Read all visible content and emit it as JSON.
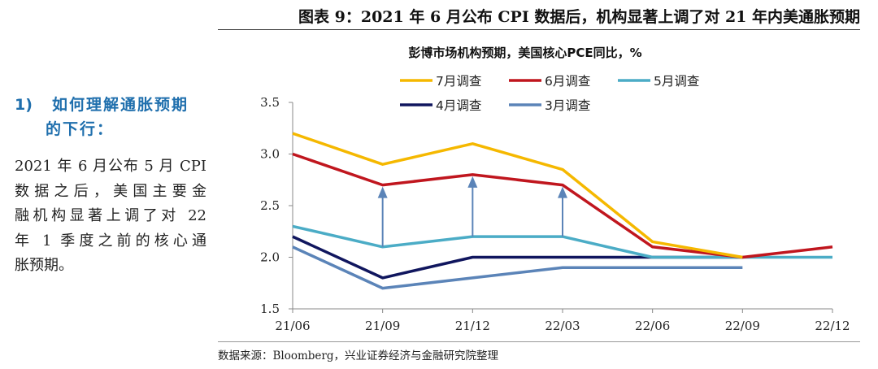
{
  "figure_title": "图表 9：2021 年 6 月公布 CPI 数据后，机构显著上调了对 21 年内美通胀预期",
  "sidebar": {
    "heading_num": "1)",
    "heading_line1": "如何理解通胀预期",
    "heading_line2": "的下行：",
    "body_lines": [
      "2021 年 6 月公布 5 月 CPI",
      "数据之后，美国主要金",
      "融机构显著上调了对 22",
      "年 1 季度之前的核心通",
      "胀预期。"
    ]
  },
  "source": "数据来源：Bloomberg，兴业证券经济与金融研究院整理",
  "chart_data": {
    "type": "line",
    "title": "彭博市场机构预期，美国核心PCE同比，%",
    "x": [
      "21/06",
      "21/09",
      "21/12",
      "22/03",
      "22/06",
      "22/09",
      "22/12"
    ],
    "ylim": [
      1.5,
      3.5
    ],
    "yticks": [
      "1.5",
      "2.0",
      "2.5",
      "3.0",
      "3.5"
    ],
    "grid": false,
    "legend_placement": "top",
    "series": [
      {
        "name": "7月调查",
        "color": "#f5b800",
        "values": [
          3.2,
          2.9,
          3.1,
          2.85,
          2.15,
          2.0,
          null
        ]
      },
      {
        "name": "6月调查",
        "color": "#c0161e",
        "values": [
          3.0,
          2.7,
          2.8,
          2.7,
          2.1,
          2.0,
          2.1
        ]
      },
      {
        "name": "5月调查",
        "color": "#4bacc6",
        "values": [
          2.3,
          2.1,
          2.2,
          2.2,
          2.0,
          2.0,
          2.0
        ]
      },
      {
        "name": "4月调查",
        "color": "#10165e",
        "values": [
          2.2,
          1.8,
          2.0,
          2.0,
          2.0,
          2.0,
          null
        ]
      },
      {
        "name": "3月调查",
        "color": "#5b84b8",
        "values": [
          2.1,
          1.7,
          1.8,
          1.9,
          1.9,
          1.9,
          null
        ]
      }
    ],
    "annotations": [
      {
        "type": "arrow",
        "x": "21/09",
        "from": 2.1,
        "to": 2.7
      },
      {
        "type": "arrow",
        "x": "21/12",
        "from": 2.2,
        "to": 2.8
      },
      {
        "type": "arrow",
        "x": "22/03",
        "from": 2.2,
        "to": 2.7
      }
    ],
    "arrow_color": "#5b84b8"
  }
}
